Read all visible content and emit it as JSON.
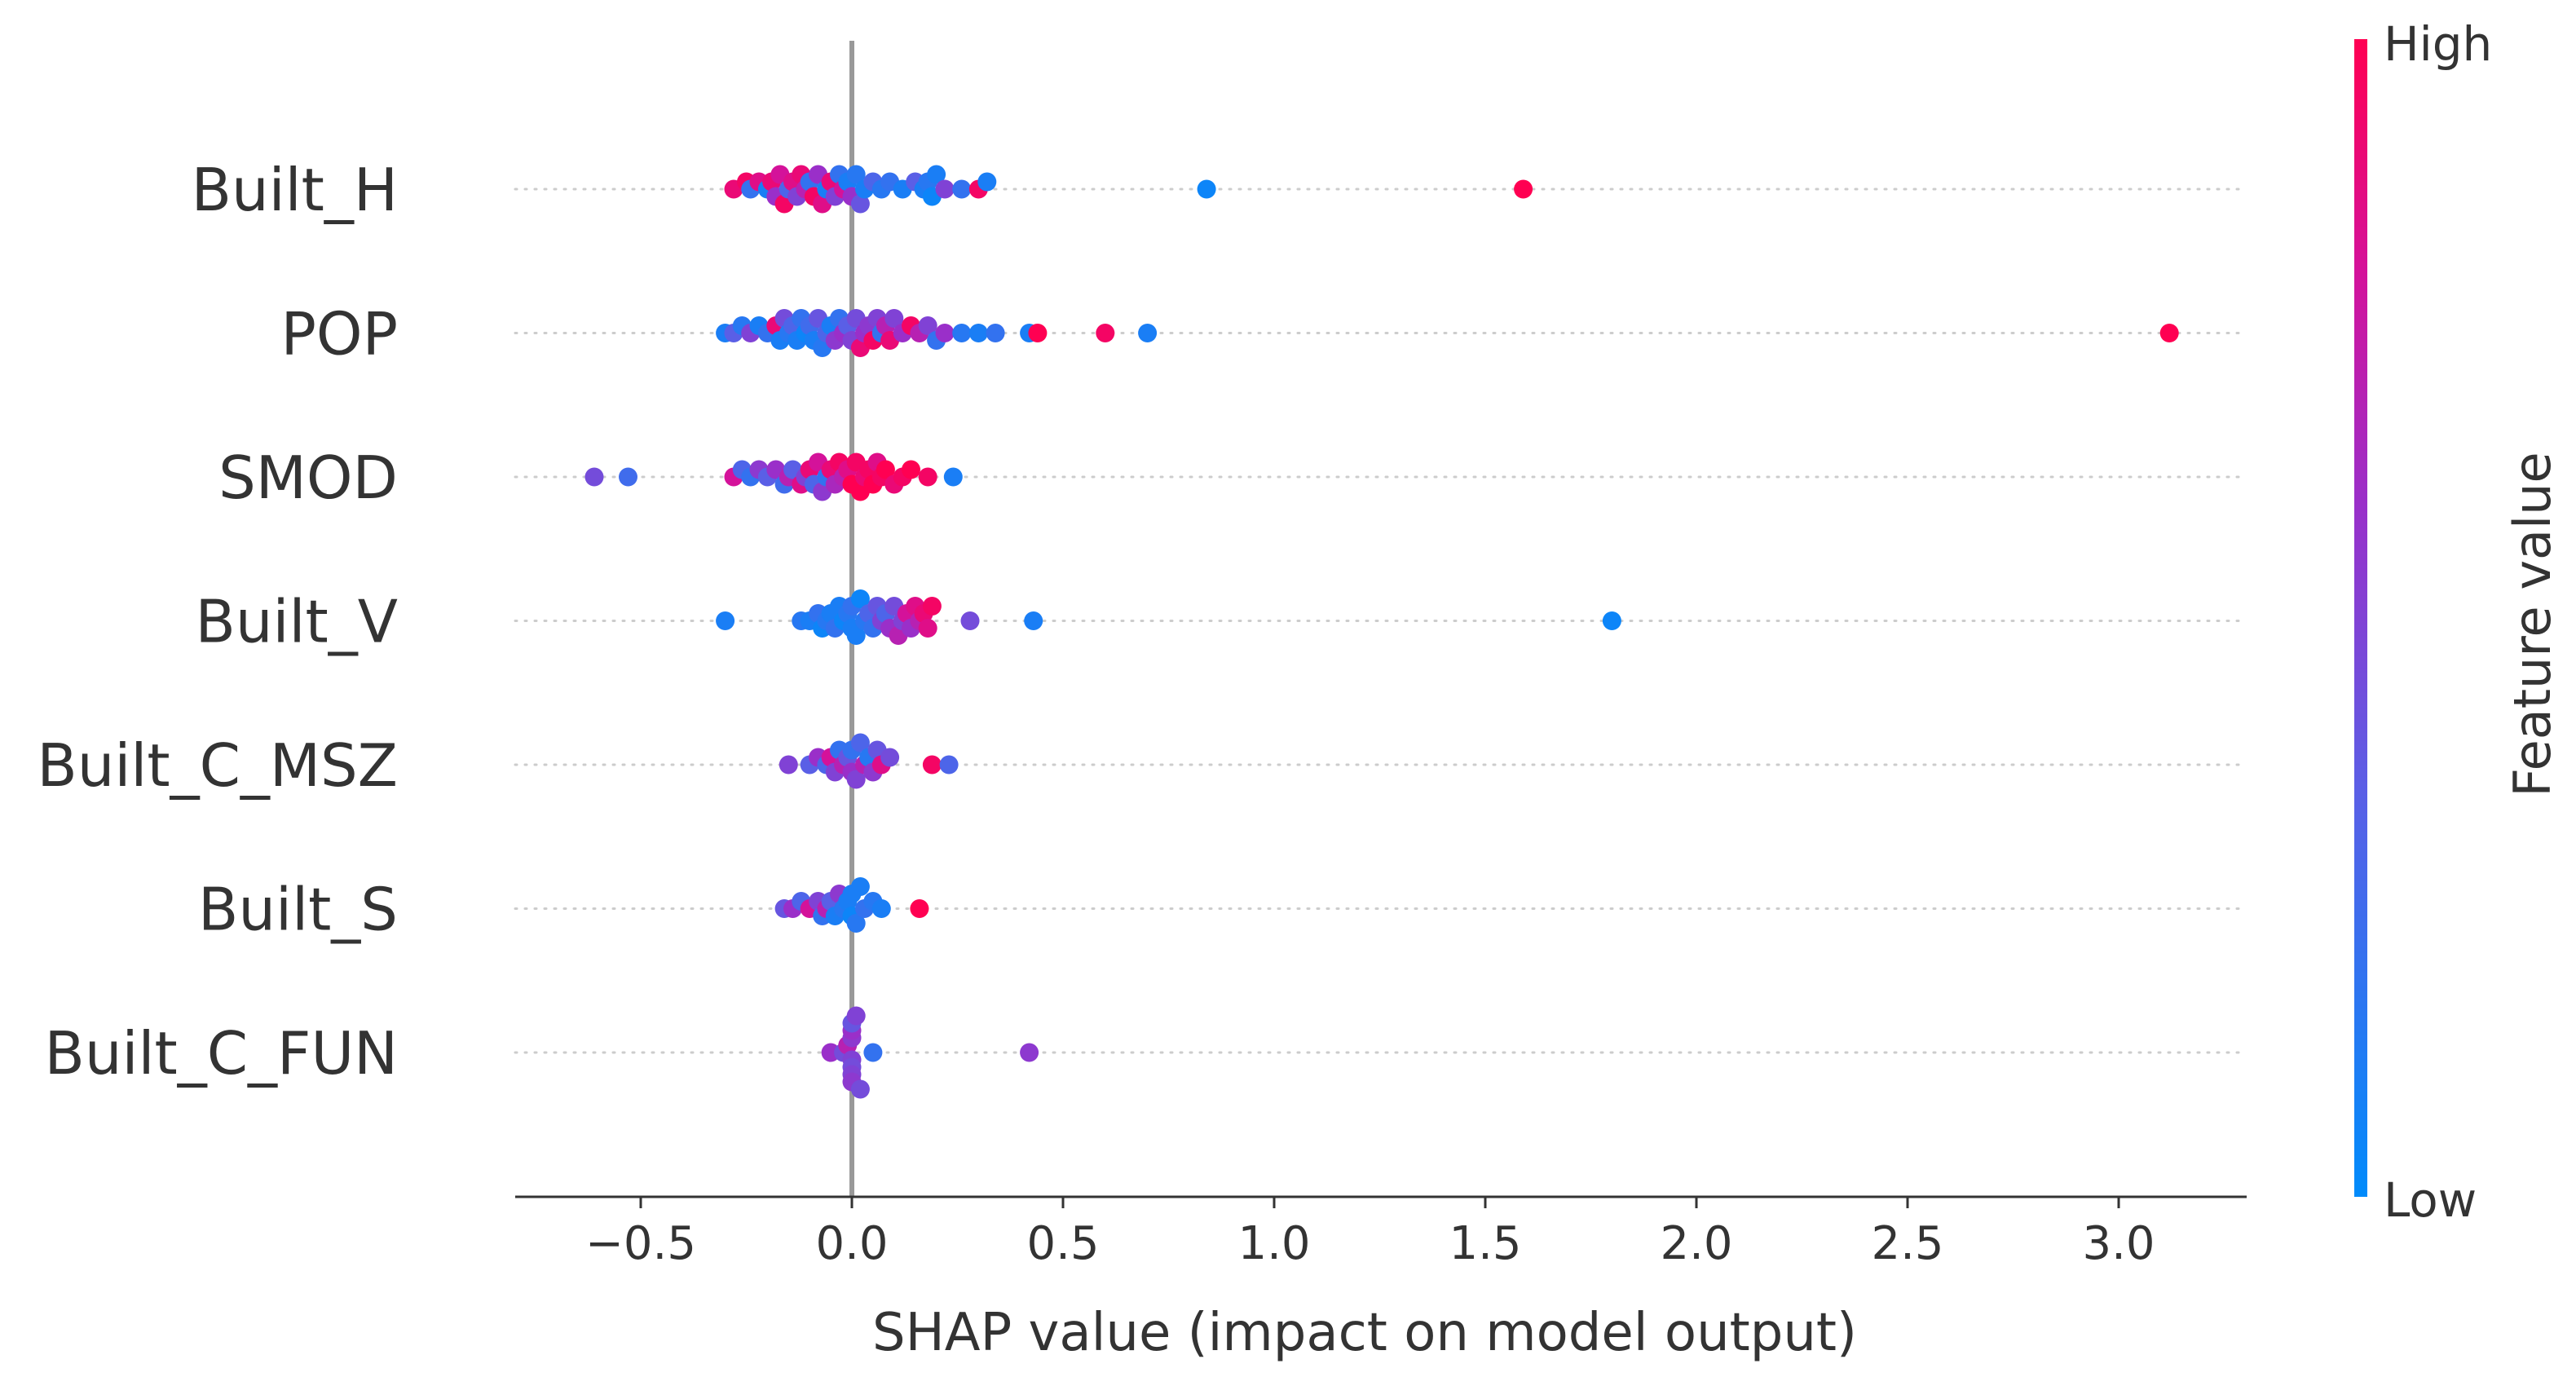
{
  "chart_data": {
    "type": "scatter",
    "subtype": "shap-beeswarm",
    "title": "",
    "xlabel": "SHAP value (impact on model output)",
    "ylabel": "",
    "xlim": [
      -0.8,
      3.3
    ],
    "x_ticks": [
      {
        "value": -0.5,
        "label": "−0.5"
      },
      {
        "value": 0.0,
        "label": "0.0"
      },
      {
        "value": 0.5,
        "label": "0.5"
      },
      {
        "value": 1.0,
        "label": "1.0"
      },
      {
        "value": 1.5,
        "label": "1.5"
      },
      {
        "value": 2.0,
        "label": "2.0"
      },
      {
        "value": 2.5,
        "label": "2.5"
      },
      {
        "value": 3.0,
        "label": "3.0"
      }
    ],
    "colorbar": {
      "title": "Feature value",
      "high_label": "High",
      "low_label": "Low",
      "high_color": "#ff0052",
      "low_color": "#008bfb"
    },
    "zero_line_color": "#999999",
    "features": [
      {
        "name": "Built_H",
        "points": [
          {
            "x": -0.28,
            "c": 0.9
          },
          {
            "x": -0.25,
            "c": 0.95
          },
          {
            "x": -0.24,
            "c": 0.2
          },
          {
            "x": -0.22,
            "c": 0.85
          },
          {
            "x": -0.2,
            "c": 0.1
          },
          {
            "x": -0.19,
            "c": 0.9
          },
          {
            "x": -0.18,
            "c": 0.6
          },
          {
            "x": -0.17,
            "c": 0.8
          },
          {
            "x": -0.16,
            "c": 0.95
          },
          {
            "x": -0.15,
            "c": 0.3
          },
          {
            "x": -0.14,
            "c": 0.85
          },
          {
            "x": -0.13,
            "c": 0.5
          },
          {
            "x": -0.12,
            "c": 0.9
          },
          {
            "x": -0.11,
            "c": 0.7
          },
          {
            "x": -0.1,
            "c": 0.2
          },
          {
            "x": -0.09,
            "c": 0.95
          },
          {
            "x": -0.08,
            "c": 0.6
          },
          {
            "x": -0.07,
            "c": 0.85
          },
          {
            "x": -0.06,
            "c": 0.1
          },
          {
            "x": -0.05,
            "c": 0.9
          },
          {
            "x": -0.04,
            "c": 0.5
          },
          {
            "x": -0.03,
            "c": 0.2
          },
          {
            "x": -0.02,
            "c": 0.8
          },
          {
            "x": -0.01,
            "c": 0.1
          },
          {
            "x": 0.0,
            "c": 0.6
          },
          {
            "x": 0.01,
            "c": 0.15
          },
          {
            "x": 0.02,
            "c": 0.4
          },
          {
            "x": 0.03,
            "c": 0.1
          },
          {
            "x": 0.05,
            "c": 0.3
          },
          {
            "x": 0.07,
            "c": 0.15
          },
          {
            "x": 0.09,
            "c": 0.2
          },
          {
            "x": 0.12,
            "c": 0.1
          },
          {
            "x": 0.15,
            "c": 0.35
          },
          {
            "x": 0.17,
            "c": 0.1
          },
          {
            "x": 0.18,
            "c": 0.15
          },
          {
            "x": 0.19,
            "c": 0.05
          },
          {
            "x": 0.2,
            "c": 0.1
          },
          {
            "x": 0.22,
            "c": 0.5
          },
          {
            "x": 0.26,
            "c": 0.2
          },
          {
            "x": 0.3,
            "c": 0.95
          },
          {
            "x": 0.32,
            "c": 0.1
          },
          {
            "x": 0.84,
            "c": 0.05
          },
          {
            "x": 1.59,
            "c": 1.0
          }
        ]
      },
      {
        "name": "POP",
        "points": [
          {
            "x": -0.3,
            "c": 0.1
          },
          {
            "x": -0.28,
            "c": 0.35
          },
          {
            "x": -0.26,
            "c": 0.15
          },
          {
            "x": -0.24,
            "c": 0.5
          },
          {
            "x": -0.22,
            "c": 0.1
          },
          {
            "x": -0.2,
            "c": 0.2
          },
          {
            "x": -0.18,
            "c": 0.9
          },
          {
            "x": -0.17,
            "c": 0.1
          },
          {
            "x": -0.16,
            "c": 0.45
          },
          {
            "x": -0.15,
            "c": 0.15
          },
          {
            "x": -0.14,
            "c": 0.3
          },
          {
            "x": -0.13,
            "c": 0.1
          },
          {
            "x": -0.12,
            "c": 0.2
          },
          {
            "x": -0.11,
            "c": 0.05
          },
          {
            "x": -0.1,
            "c": 0.25
          },
          {
            "x": -0.09,
            "c": 0.1
          },
          {
            "x": -0.08,
            "c": 0.4
          },
          {
            "x": -0.07,
            "c": 0.15
          },
          {
            "x": -0.06,
            "c": 0.3
          },
          {
            "x": -0.05,
            "c": 0.1
          },
          {
            "x": -0.04,
            "c": 0.55
          },
          {
            "x": -0.03,
            "c": 0.2
          },
          {
            "x": -0.02,
            "c": 0.6
          },
          {
            "x": -0.01,
            "c": 0.35
          },
          {
            "x": 0.0,
            "c": 0.5
          },
          {
            "x": 0.01,
            "c": 0.45
          },
          {
            "x": 0.02,
            "c": 0.9
          },
          {
            "x": 0.03,
            "c": 0.6
          },
          {
            "x": 0.04,
            "c": 0.55
          },
          {
            "x": 0.05,
            "c": 0.95
          },
          {
            "x": 0.06,
            "c": 0.5
          },
          {
            "x": 0.07,
            "c": 0.2
          },
          {
            "x": 0.08,
            "c": 0.7
          },
          {
            "x": 0.09,
            "c": 0.9
          },
          {
            "x": 0.1,
            "c": 0.5
          },
          {
            "x": 0.12,
            "c": 0.6
          },
          {
            "x": 0.14,
            "c": 0.95
          },
          {
            "x": 0.16,
            "c": 0.7
          },
          {
            "x": 0.18,
            "c": 0.5
          },
          {
            "x": 0.2,
            "c": 0.2
          },
          {
            "x": 0.22,
            "c": 0.6
          },
          {
            "x": 0.26,
            "c": 0.15
          },
          {
            "x": 0.3,
            "c": 0.1
          },
          {
            "x": 0.34,
            "c": 0.2
          },
          {
            "x": 0.42,
            "c": 0.1
          },
          {
            "x": 0.44,
            "c": 1.0
          },
          {
            "x": 0.6,
            "c": 0.95
          },
          {
            "x": 0.7,
            "c": 0.1
          },
          {
            "x": 3.12,
            "c": 1.0
          }
        ]
      },
      {
        "name": "SMOD",
        "points": [
          {
            "x": -0.61,
            "c": 0.45
          },
          {
            "x": -0.53,
            "c": 0.25
          },
          {
            "x": -0.28,
            "c": 0.8
          },
          {
            "x": -0.26,
            "c": 0.3
          },
          {
            "x": -0.24,
            "c": 0.2
          },
          {
            "x": -0.22,
            "c": 0.55
          },
          {
            "x": -0.2,
            "c": 0.35
          },
          {
            "x": -0.18,
            "c": 0.6
          },
          {
            "x": -0.16,
            "c": 0.25
          },
          {
            "x": -0.15,
            "c": 0.7
          },
          {
            "x": -0.14,
            "c": 0.35
          },
          {
            "x": -0.12,
            "c": 0.85
          },
          {
            "x": -0.11,
            "c": 0.5
          },
          {
            "x": -0.1,
            "c": 0.9
          },
          {
            "x": -0.09,
            "c": 0.3
          },
          {
            "x": -0.08,
            "c": 0.8
          },
          {
            "x": -0.07,
            "c": 0.55
          },
          {
            "x": -0.06,
            "c": 0.2
          },
          {
            "x": -0.05,
            "c": 0.9
          },
          {
            "x": -0.04,
            "c": 0.65
          },
          {
            "x": -0.03,
            "c": 0.95
          },
          {
            "x": -0.02,
            "c": 0.7
          },
          {
            "x": -0.01,
            "c": 0.85
          },
          {
            "x": 0.0,
            "c": 1.0
          },
          {
            "x": 0.01,
            "c": 0.95
          },
          {
            "x": 0.02,
            "c": 1.0
          },
          {
            "x": 0.03,
            "c": 0.9
          },
          {
            "x": 0.04,
            "c": 0.95
          },
          {
            "x": 0.05,
            "c": 1.0
          },
          {
            "x": 0.06,
            "c": 0.85
          },
          {
            "x": 0.07,
            "c": 0.95
          },
          {
            "x": 0.08,
            "c": 1.0
          },
          {
            "x": 0.1,
            "c": 0.9
          },
          {
            "x": 0.12,
            "c": 0.95
          },
          {
            "x": 0.14,
            "c": 1.0
          },
          {
            "x": 0.18,
            "c": 0.95
          },
          {
            "x": 0.24,
            "c": 0.1
          }
        ]
      },
      {
        "name": "Built_V",
        "points": [
          {
            "x": -0.3,
            "c": 0.1
          },
          {
            "x": -0.12,
            "c": 0.15
          },
          {
            "x": -0.1,
            "c": 0.1
          },
          {
            "x": -0.08,
            "c": 0.2
          },
          {
            "x": -0.07,
            "c": 0.05
          },
          {
            "x": -0.06,
            "c": 0.15
          },
          {
            "x": -0.05,
            "c": 0.1
          },
          {
            "x": -0.04,
            "c": 0.2
          },
          {
            "x": -0.03,
            "c": 0.1
          },
          {
            "x": -0.02,
            "c": 0.05
          },
          {
            "x": -0.01,
            "c": 0.15
          },
          {
            "x": 0.0,
            "c": 0.1
          },
          {
            "x": 0.0,
            "c": 0.2
          },
          {
            "x": 0.01,
            "c": 0.1
          },
          {
            "x": 0.02,
            "c": 0.05
          },
          {
            "x": 0.03,
            "c": 0.15
          },
          {
            "x": 0.04,
            "c": 0.3
          },
          {
            "x": 0.05,
            "c": 0.2
          },
          {
            "x": 0.06,
            "c": 0.4
          },
          {
            "x": 0.07,
            "c": 0.5
          },
          {
            "x": 0.08,
            "c": 0.3
          },
          {
            "x": 0.09,
            "c": 0.6
          },
          {
            "x": 0.1,
            "c": 0.45
          },
          {
            "x": 0.11,
            "c": 0.7
          },
          {
            "x": 0.12,
            "c": 0.5
          },
          {
            "x": 0.13,
            "c": 0.8
          },
          {
            "x": 0.14,
            "c": 0.6
          },
          {
            "x": 0.15,
            "c": 0.85
          },
          {
            "x": 0.16,
            "c": 0.7
          },
          {
            "x": 0.17,
            "c": 0.9
          },
          {
            "x": 0.18,
            "c": 0.85
          },
          {
            "x": 0.19,
            "c": 0.95
          },
          {
            "x": 0.28,
            "c": 0.45
          },
          {
            "x": 0.43,
            "c": 0.1
          },
          {
            "x": 1.8,
            "c": 0.05
          }
        ]
      },
      {
        "name": "Built_C_MSZ",
        "points": [
          {
            "x": -0.15,
            "c": 0.5
          },
          {
            "x": -0.1,
            "c": 0.35
          },
          {
            "x": -0.08,
            "c": 0.6
          },
          {
            "x": -0.06,
            "c": 0.3
          },
          {
            "x": -0.05,
            "c": 0.8
          },
          {
            "x": -0.04,
            "c": 0.5
          },
          {
            "x": -0.03,
            "c": 0.2
          },
          {
            "x": -0.02,
            "c": 0.7
          },
          {
            "x": -0.01,
            "c": 0.4
          },
          {
            "x": 0.0,
            "c": 0.6
          },
          {
            "x": 0.0,
            "c": 0.2
          },
          {
            "x": 0.01,
            "c": 0.5
          },
          {
            "x": 0.02,
            "c": 0.3
          },
          {
            "x": 0.03,
            "c": 0.7
          },
          {
            "x": 0.04,
            "c": 0.15
          },
          {
            "x": 0.05,
            "c": 0.55
          },
          {
            "x": 0.06,
            "c": 0.4
          },
          {
            "x": 0.07,
            "c": 0.85
          },
          {
            "x": 0.09,
            "c": 0.45
          },
          {
            "x": 0.19,
            "c": 0.95
          },
          {
            "x": 0.23,
            "c": 0.3
          }
        ]
      },
      {
        "name": "Built_S",
        "points": [
          {
            "x": -0.16,
            "c": 0.4
          },
          {
            "x": -0.14,
            "c": 0.6
          },
          {
            "x": -0.12,
            "c": 0.3
          },
          {
            "x": -0.1,
            "c": 0.8
          },
          {
            "x": -0.08,
            "c": 0.5
          },
          {
            "x": -0.07,
            "c": 0.2
          },
          {
            "x": -0.06,
            "c": 0.7
          },
          {
            "x": -0.05,
            "c": 0.35
          },
          {
            "x": -0.04,
            "c": 0.1
          },
          {
            "x": -0.03,
            "c": 0.55
          },
          {
            "x": -0.02,
            "c": 0.15
          },
          {
            "x": -0.01,
            "c": 0.1
          },
          {
            "x": 0.0,
            "c": 0.05
          },
          {
            "x": 0.0,
            "c": 0.1
          },
          {
            "x": 0.01,
            "c": 0.15
          },
          {
            "x": 0.02,
            "c": 0.1
          },
          {
            "x": 0.03,
            "c": 0.2
          },
          {
            "x": 0.05,
            "c": 0.15
          },
          {
            "x": 0.07,
            "c": 0.1
          },
          {
            "x": 0.16,
            "c": 1.0
          }
        ]
      },
      {
        "name": "Built_C_FUN",
        "points": [
          {
            "x": -0.05,
            "c": 0.6
          },
          {
            "x": -0.02,
            "c": 0.45
          },
          {
            "x": -0.01,
            "c": 0.7
          },
          {
            "x": 0.0,
            "c": 0.5
          },
          {
            "x": 0.0,
            "c": 0.55
          },
          {
            "x": 0.0,
            "c": 0.45
          },
          {
            "x": 0.0,
            "c": 0.6
          },
          {
            "x": 0.0,
            "c": 0.5
          },
          {
            "x": 0.0,
            "c": 0.4
          },
          {
            "x": 0.0,
            "c": 0.55
          },
          {
            "x": 0.01,
            "c": 0.5
          },
          {
            "x": 0.02,
            "c": 0.45
          },
          {
            "x": 0.05,
            "c": 0.2
          },
          {
            "x": 0.42,
            "c": 0.55
          }
        ]
      }
    ]
  }
}
